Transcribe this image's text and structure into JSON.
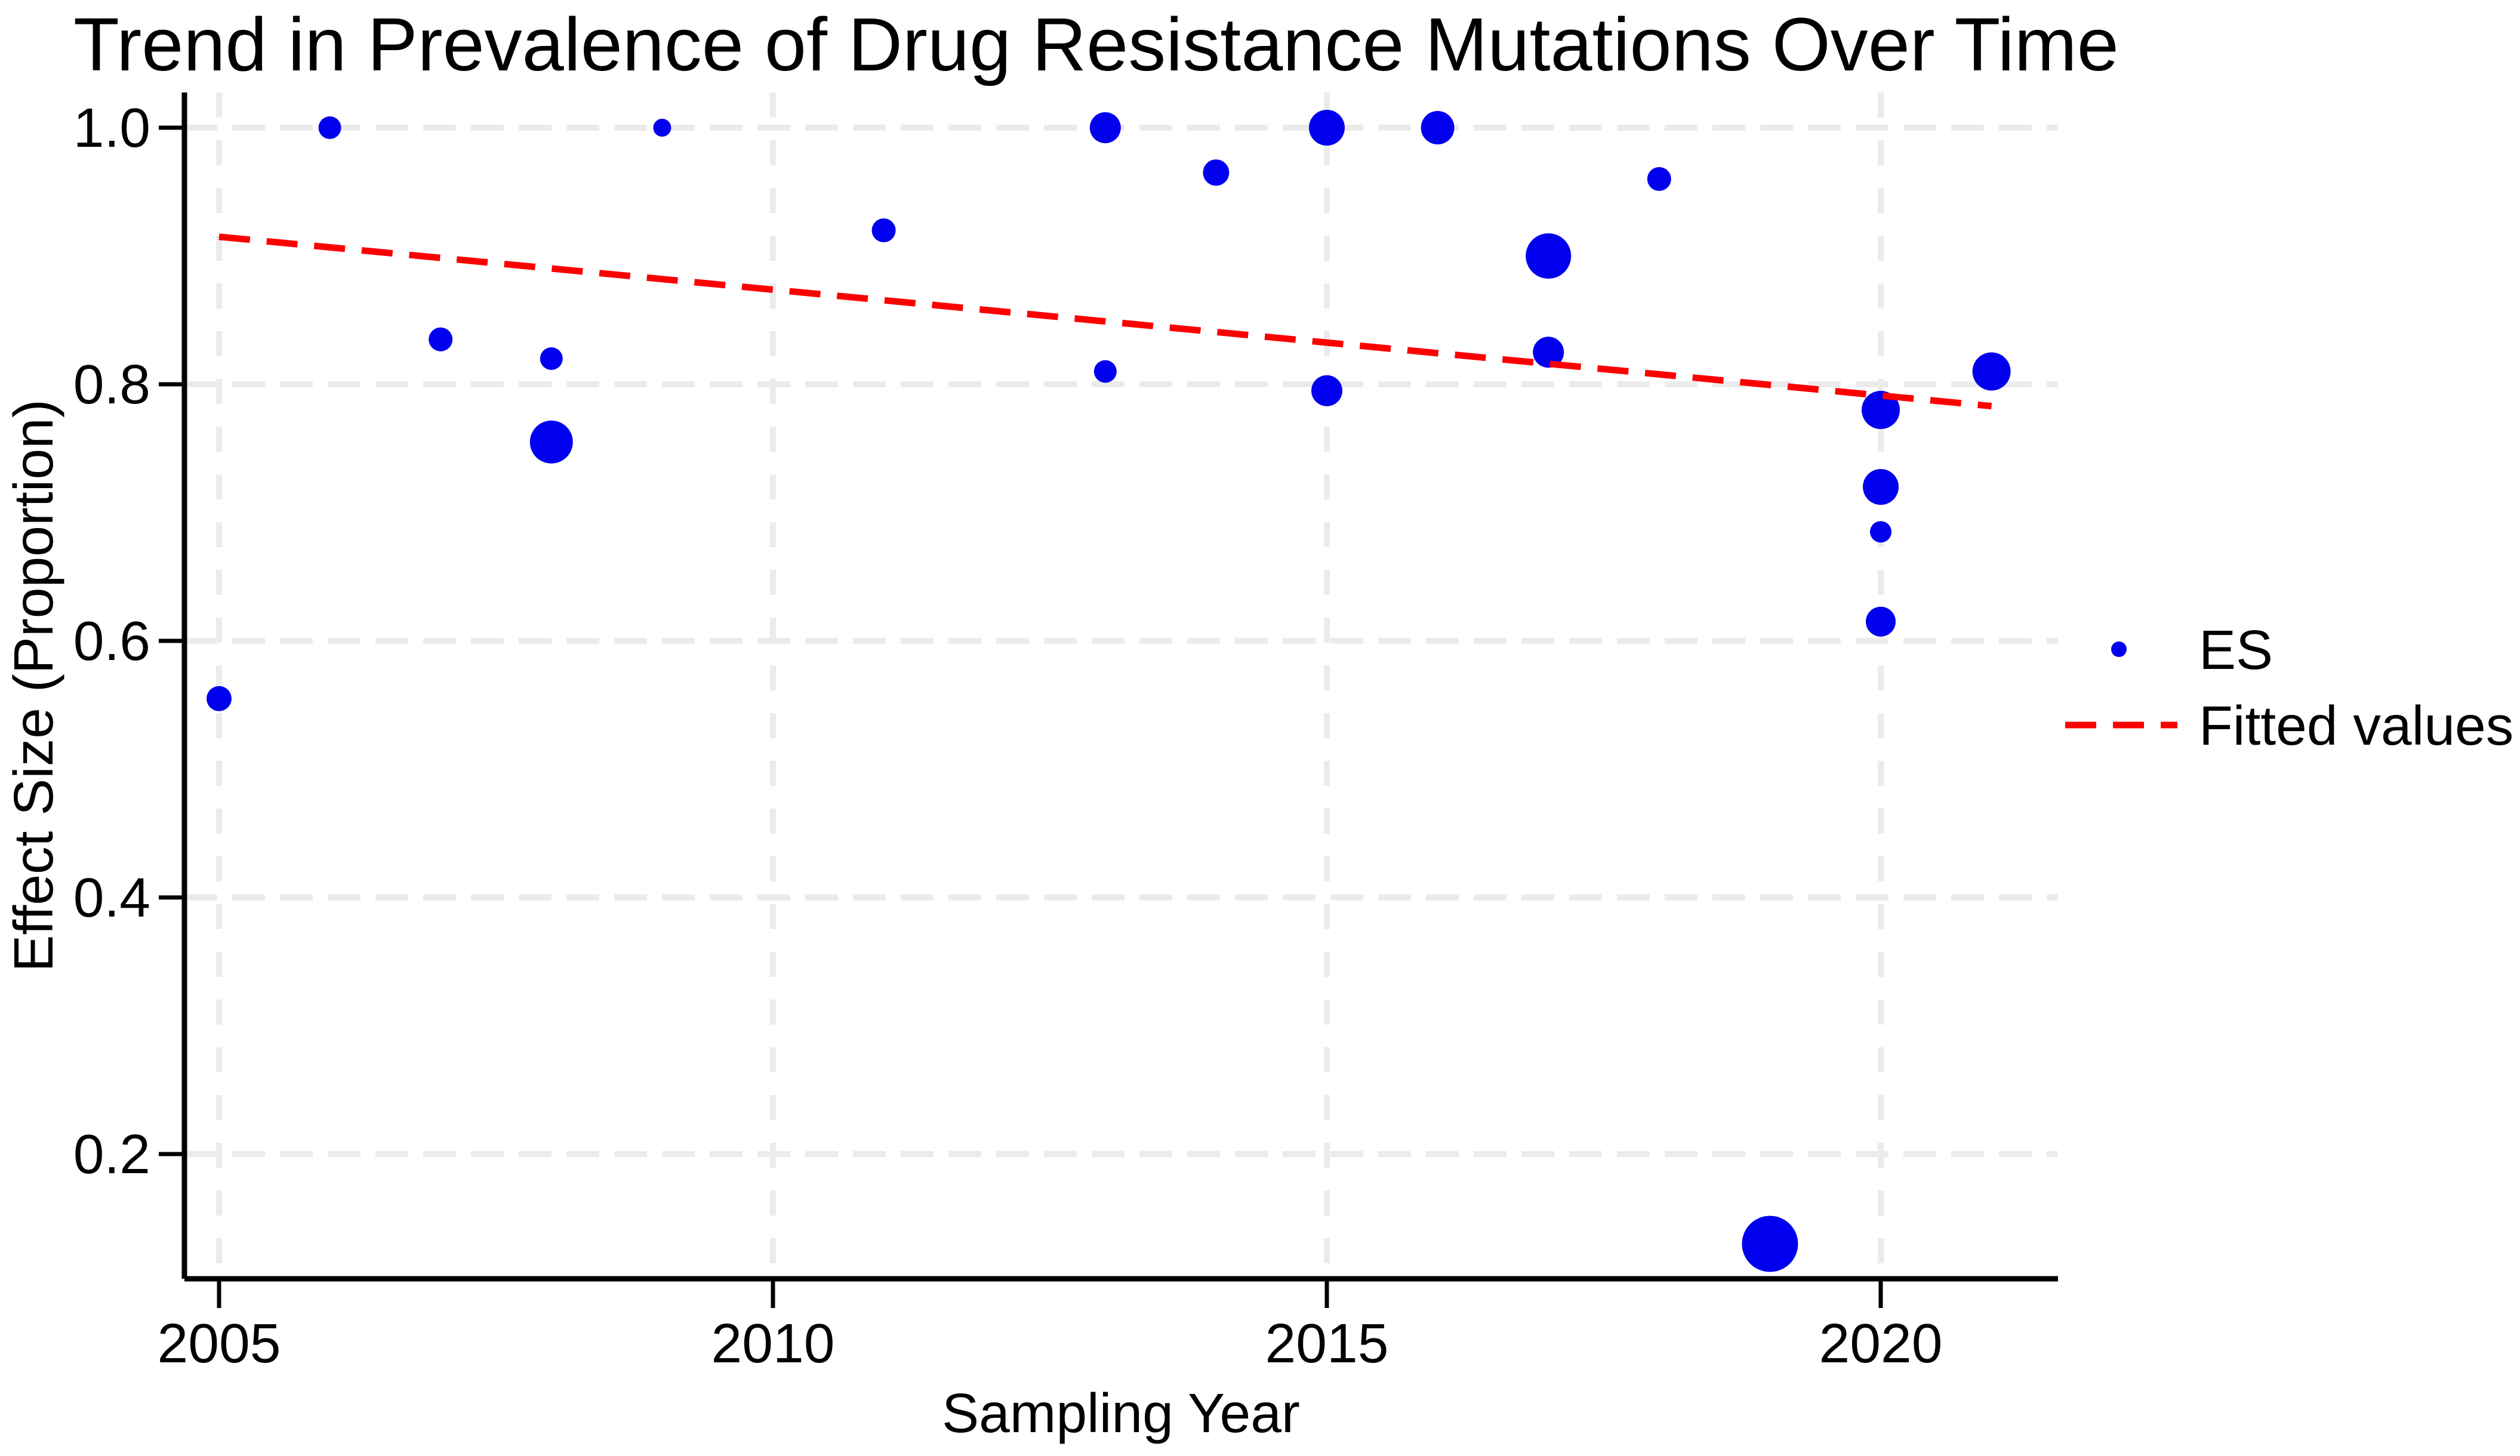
{
  "title": "Trend in Prevalence of Drug Resistance Mutations Over Time",
  "colors": {
    "point_blue": "#0000EF",
    "fit_red": "#FC0000",
    "grid_gray": "#EBEBEB",
    "axis_black": "#000000",
    "background": "#FFFFFF"
  },
  "chart_data": {
    "type": "scatter",
    "title": "Trend in Prevalence of Drug Resistance Mutations Over Time",
    "xlabel": "Sampling Year",
    "ylabel": "Effect Size (Proportion)",
    "xlim": [
      2004.7,
      2021.6
    ],
    "ylim": [
      0.103,
      1.027
    ],
    "grid": true,
    "x_ticks": [
      2005,
      2010,
      2015,
      2020
    ],
    "x_tick_labels": [
      "2005",
      "2010",
      "2015",
      "2020"
    ],
    "y_ticks": [
      0.2,
      0.4,
      0.6,
      0.8,
      1.0
    ],
    "y_tick_labels": [
      "0.2",
      "0.4",
      "0.6",
      "0.8",
      "1.0"
    ],
    "legend": [
      {
        "label": "ES",
        "marker": "circle",
        "color": "#0000EF"
      },
      {
        "label": "Fitted values",
        "marker": "dashed-line",
        "color": "#FC0000"
      }
    ],
    "series": [
      {
        "name": "ES",
        "type": "bubble",
        "color": "#0000EF",
        "points": [
          {
            "year": 2005,
            "es": 0.555,
            "r": 21
          },
          {
            "year": 2006,
            "es": 1.0,
            "r": 19
          },
          {
            "year": 2007,
            "es": 0.835,
            "r": 20
          },
          {
            "year": 2008,
            "es": 0.82,
            "r": 19
          },
          {
            "year": 2008,
            "es": 0.755,
            "r": 36
          },
          {
            "year": 2009,
            "es": 1.0,
            "r": 15
          },
          {
            "year": 2011,
            "es": 0.92,
            "r": 20
          },
          {
            "year": 2013,
            "es": 1.0,
            "r": 26
          },
          {
            "year": 2013,
            "es": 0.81,
            "r": 19
          },
          {
            "year": 2014,
            "es": 0.965,
            "r": 22
          },
          {
            "year": 2015,
            "es": 1.0,
            "r": 30
          },
          {
            "year": 2015,
            "es": 0.795,
            "r": 26
          },
          {
            "year": 2016,
            "es": 1.0,
            "r": 28
          },
          {
            "year": 2017,
            "es": 0.9,
            "r": 38
          },
          {
            "year": 2017,
            "es": 0.825,
            "r": 26
          },
          {
            "year": 2018,
            "es": 0.96,
            "r": 20
          },
          {
            "year": 2019,
            "es": 0.13,
            "r": 47
          },
          {
            "year": 2020,
            "es": 0.78,
            "r": 32
          },
          {
            "year": 2020,
            "es": 0.72,
            "r": 30
          },
          {
            "year": 2020,
            "es": 0.685,
            "r": 18
          },
          {
            "year": 2020,
            "es": 0.615,
            "r": 25
          },
          {
            "year": 2021,
            "es": 0.81,
            "r": 32
          }
        ]
      },
      {
        "name": "Fitted values",
        "type": "line",
        "style": "dashed",
        "color": "#FC0000",
        "points": [
          {
            "year": 2005,
            "es": 0.915
          },
          {
            "year": 2021,
            "es": 0.783
          }
        ]
      }
    ]
  }
}
